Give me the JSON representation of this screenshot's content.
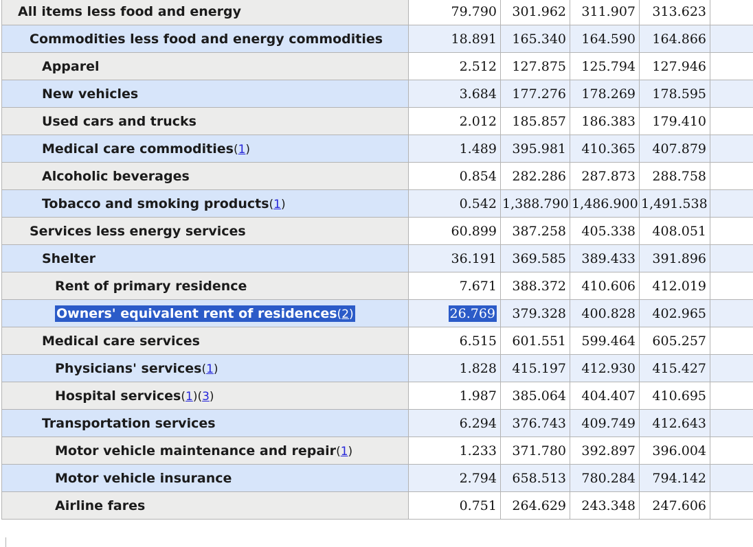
{
  "app": {
    "description": "CPI data table with relative importance and index values",
    "selection_color": "#2b5bc8",
    "link_color": "#2626d9",
    "stub_gray": "#ececeb",
    "stub_blue": "#d7e5fa",
    "data_blue": "#e8effb",
    "border_color": "#b3b3b3"
  },
  "chart_data": {
    "type": "table",
    "columns": [
      "item",
      "value1",
      "value2",
      "value3",
      "value4"
    ],
    "rows_note": "see table.rows"
  },
  "table": {
    "rows": [
      {
        "label": "All items less food and energy",
        "level": 0,
        "footnotes": [],
        "values": [
          "79.790",
          "301.962",
          "311.907",
          "313.623"
        ],
        "shade": "plain",
        "selected": false
      },
      {
        "label": "Commodities less food and energy commodities",
        "level": 1,
        "footnotes": [],
        "values": [
          "18.891",
          "165.340",
          "164.590",
          "164.866"
        ],
        "shade": "blue",
        "selected": false
      },
      {
        "label": "Apparel",
        "level": 2,
        "footnotes": [],
        "values": [
          "2.512",
          "127.875",
          "125.794",
          "127.946"
        ],
        "shade": "plain",
        "selected": false
      },
      {
        "label": "New vehicles",
        "level": 2,
        "footnotes": [],
        "values": [
          "3.684",
          "177.276",
          "178.269",
          "178.595"
        ],
        "shade": "blue",
        "selected": false
      },
      {
        "label": "Used cars and trucks",
        "level": 2,
        "footnotes": [],
        "values": [
          "2.012",
          "185.857",
          "186.383",
          "179.410"
        ],
        "shade": "plain",
        "selected": false
      },
      {
        "label": "Medical care commodities",
        "level": 2,
        "footnotes": [
          "1"
        ],
        "values": [
          "1.489",
          "395.981",
          "410.365",
          "407.879"
        ],
        "shade": "blue",
        "selected": false
      },
      {
        "label": "Alcoholic beverages",
        "level": 2,
        "footnotes": [],
        "values": [
          "0.854",
          "282.286",
          "287.873",
          "288.758"
        ],
        "shade": "plain",
        "selected": false
      },
      {
        "label": "Tobacco and smoking products",
        "level": 2,
        "footnotes": [
          "1"
        ],
        "values": [
          "0.542",
          "1,388.790",
          "1,486.900",
          "1,491.538"
        ],
        "shade": "blue",
        "selected": false
      },
      {
        "label": "Services less energy services",
        "level": 1,
        "footnotes": [],
        "values": [
          "60.899",
          "387.258",
          "405.338",
          "408.051"
        ],
        "shade": "plain",
        "selected": false
      },
      {
        "label": "Shelter",
        "level": 2,
        "footnotes": [],
        "values": [
          "36.191",
          "369.585",
          "389.433",
          "391.896"
        ],
        "shade": "blue",
        "selected": false
      },
      {
        "label": "Rent of primary residence",
        "level": 3,
        "footnotes": [],
        "values": [
          "7.671",
          "388.372",
          "410.606",
          "412.019"
        ],
        "shade": "plain",
        "selected": false
      },
      {
        "label": "Owners' equivalent rent of residences",
        "level": 3,
        "footnotes": [
          "2"
        ],
        "values": [
          "26.769",
          "379.328",
          "400.828",
          "402.965"
        ],
        "shade": "blue",
        "selected": true
      },
      {
        "label": "Medical care services",
        "level": 2,
        "footnotes": [],
        "values": [
          "6.515",
          "601.551",
          "599.464",
          "605.257"
        ],
        "shade": "plain",
        "selected": false
      },
      {
        "label": "Physicians' services",
        "level": 3,
        "footnotes": [
          "1"
        ],
        "values": [
          "1.828",
          "415.197",
          "412.930",
          "415.427"
        ],
        "shade": "blue",
        "selected": false
      },
      {
        "label": "Hospital services",
        "level": 3,
        "footnotes": [
          "1",
          "3"
        ],
        "values": [
          "1.987",
          "385.064",
          "404.407",
          "410.695"
        ],
        "shade": "plain",
        "selected": false
      },
      {
        "label": "Transportation services",
        "level": 2,
        "footnotes": [],
        "values": [
          "6.294",
          "376.743",
          "409.749",
          "412.643"
        ],
        "shade": "blue",
        "selected": false
      },
      {
        "label": "Motor vehicle maintenance and repair",
        "level": 3,
        "footnotes": [
          "1"
        ],
        "values": [
          "1.233",
          "371.780",
          "392.897",
          "396.004"
        ],
        "shade": "plain",
        "selected": false
      },
      {
        "label": "Motor vehicle insurance",
        "level": 3,
        "footnotes": [],
        "values": [
          "2.794",
          "658.513",
          "780.284",
          "794.142"
        ],
        "shade": "blue",
        "selected": false
      },
      {
        "label": "Airline fares",
        "level": 3,
        "footnotes": [],
        "values": [
          "0.751",
          "264.629",
          "243.348",
          "247.606"
        ],
        "shade": "plain",
        "selected": false
      }
    ]
  }
}
